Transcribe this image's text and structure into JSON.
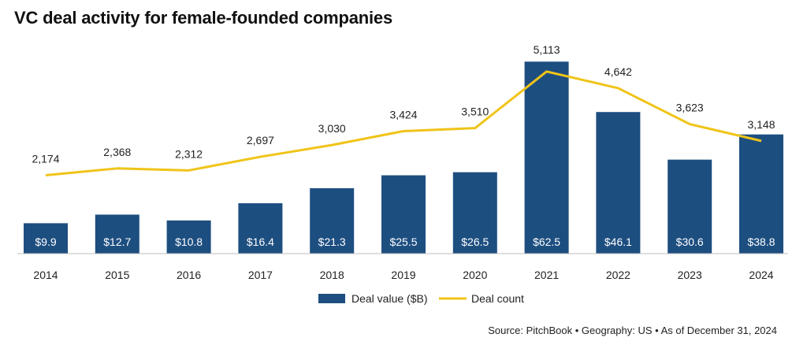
{
  "title": "VC deal activity for female-founded companies",
  "source": "Source: PitchBook  •  Geography: US  •  As of December 31, 2024",
  "colors": {
    "bar": "#1d4e80",
    "line": "#f0c419",
    "axis": "#bfbfbf"
  },
  "chart_data": {
    "type": "bar",
    "categories": [
      "2014",
      "2015",
      "2016",
      "2017",
      "2018",
      "2019",
      "2020",
      "2021",
      "2022",
      "2023",
      "2024"
    ],
    "series": [
      {
        "name": "Deal value ($B)",
        "type": "bar",
        "values": [
          9.9,
          12.7,
          10.8,
          16.4,
          21.3,
          25.5,
          26.5,
          62.5,
          46.1,
          30.6,
          38.8
        ],
        "labels": [
          "$9.9",
          "$12.7",
          "$10.8",
          "$16.4",
          "$21.3",
          "$25.5",
          "$26.5",
          "$62.5",
          "$46.1",
          "$30.6",
          "$38.8"
        ]
      },
      {
        "name": "Deal count",
        "type": "line",
        "values": [
          2174,
          2368,
          2312,
          2697,
          3030,
          3424,
          3510,
          5113,
          4642,
          3623,
          3148
        ],
        "labels": [
          "2,174",
          "2,368",
          "2,312",
          "2,697",
          "3,030",
          "3,424",
          "3,510",
          "5,113",
          "4,642",
          "3,623",
          "3,148"
        ]
      }
    ],
    "legend_position": "bottom"
  }
}
